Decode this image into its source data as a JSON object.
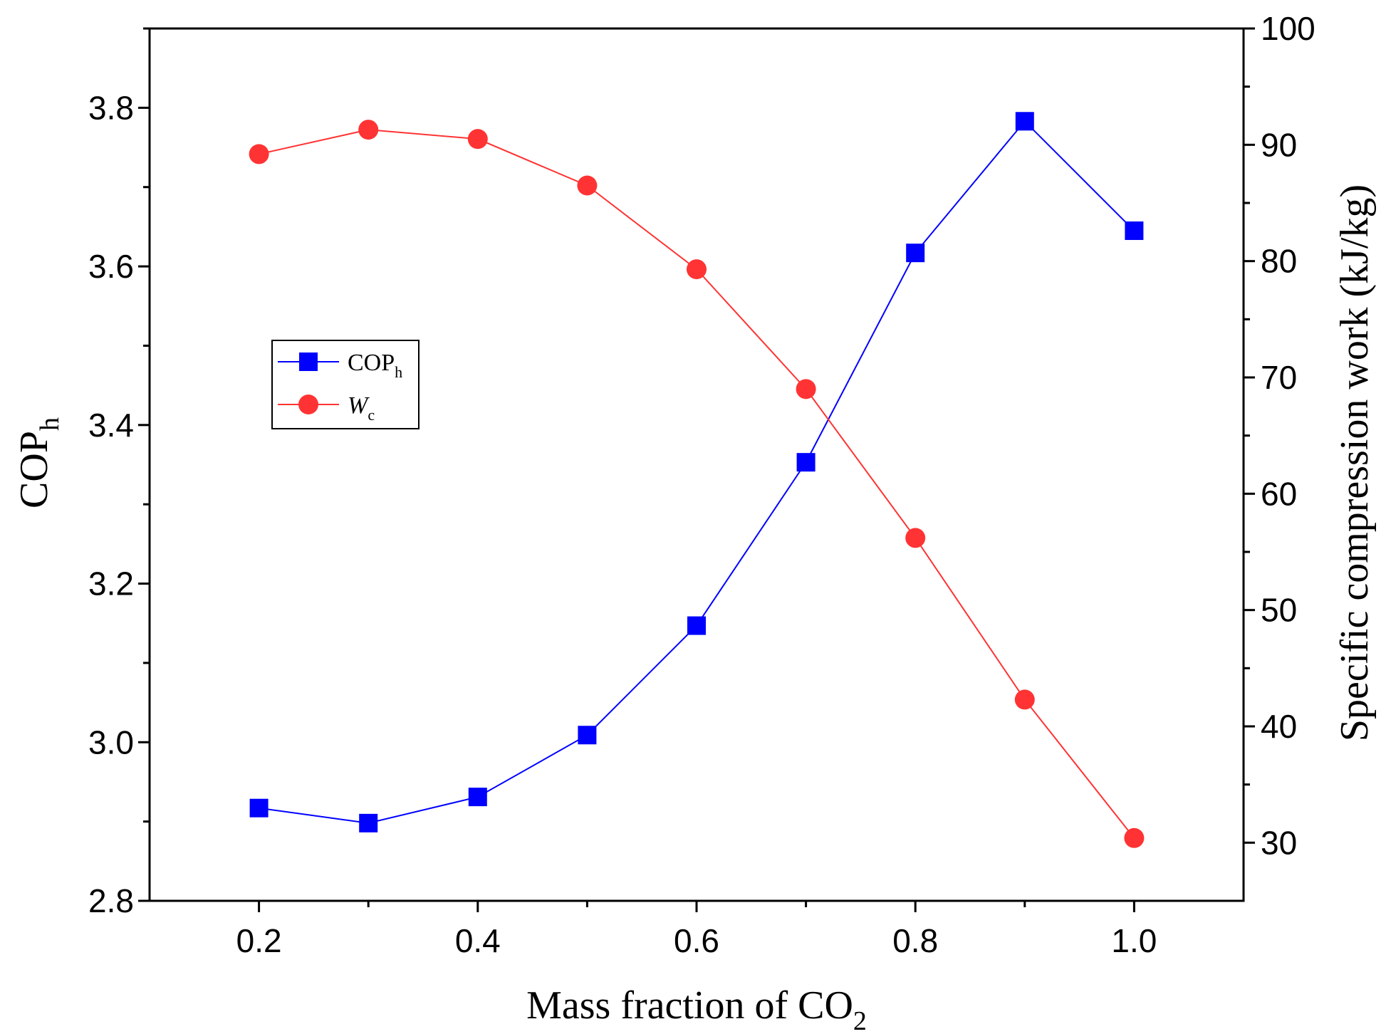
{
  "chart_data": {
    "type": "line",
    "x": [
      0.2,
      0.3,
      0.4,
      0.5,
      0.6,
      0.7,
      0.8,
      0.9,
      1.0
    ],
    "xlim": [
      0.1,
      1.1
    ],
    "xticks": [
      0.2,
      0.4,
      0.6,
      0.8,
      1.0
    ],
    "xtick_labels": [
      "0.2",
      "0.4",
      "0.6",
      "0.8",
      "1.0"
    ],
    "xlabel": {
      "main": "Mass fraction of CO",
      "sub": "2"
    },
    "ylabel_left": {
      "main": "COP",
      "sub": "h"
    },
    "ylabel_right": "Specific compression work (kJ/kg)",
    "ylim_left": [
      2.8,
      3.9
    ],
    "yticks_left": [
      2.8,
      3.0,
      3.2,
      3.4,
      3.6,
      3.8
    ],
    "ytick_labels_left": [
      "2.8",
      "3.0",
      "3.2",
      "3.4",
      "3.6",
      "3.8"
    ],
    "ylim_right": [
      25,
      100
    ],
    "yticks_right": [
      30,
      40,
      50,
      60,
      70,
      80,
      90,
      100
    ],
    "ytick_labels_right": [
      "30",
      "40",
      "50",
      "60",
      "70",
      "80",
      "90",
      "100"
    ],
    "series": [
      {
        "name": "COP_h",
        "legend_main": "COP",
        "legend_sub": "h",
        "axis": "left",
        "marker": "square",
        "color": "#0000ff",
        "values": [
          2.917,
          2.898,
          2.931,
          3.009,
          3.147,
          3.353,
          3.617,
          3.783,
          3.645
        ]
      },
      {
        "name": "W_c",
        "legend_main": "W",
        "legend_sub": "c",
        "axis": "right",
        "marker": "circle",
        "color": "#ff3333",
        "values": [
          89.2,
          91.3,
          90.5,
          86.5,
          79.3,
          69.0,
          56.2,
          42.3,
          30.4
        ]
      }
    ],
    "legend_position": "center-left"
  }
}
